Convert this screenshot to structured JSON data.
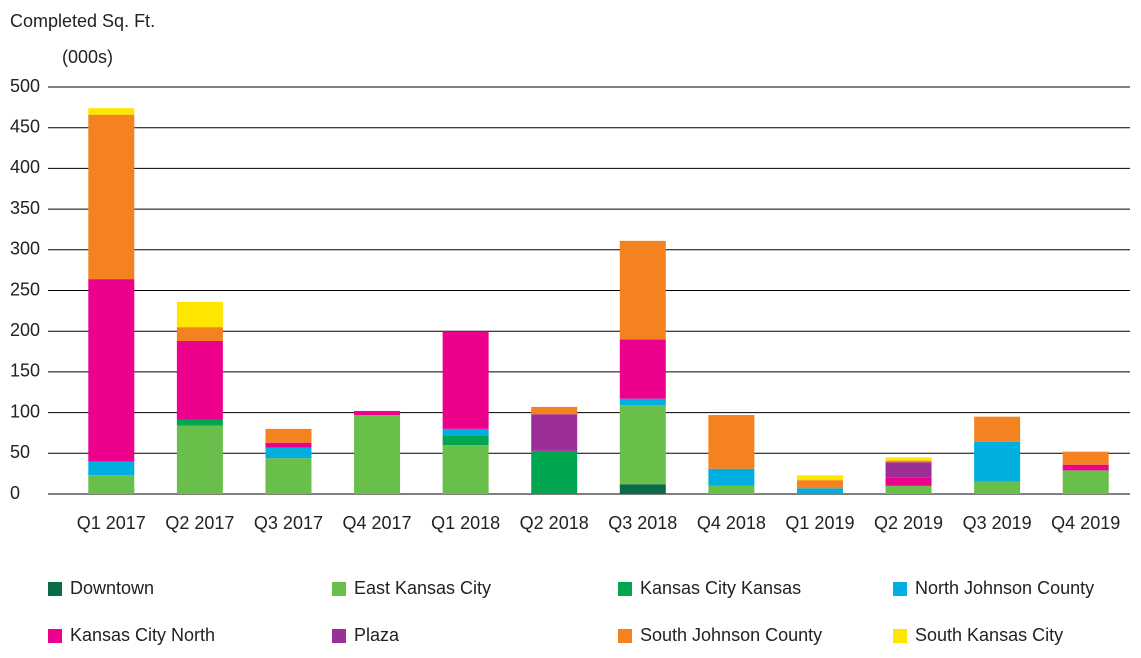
{
  "chart_data": {
    "type": "stacked_bar",
    "y_label": [
      "Completed Sq. Ft.",
      "(000s)"
    ],
    "categories": [
      "Q1 2017",
      "Q2 2017",
      "Q3 2017",
      "Q4 2017",
      "Q1 2018",
      "Q2 2018",
      "Q3 2018",
      "Q4 2018",
      "Q1 2019",
      "Q2 2019",
      "Q3 2019",
      "Q4 2019"
    ],
    "series": [
      {
        "name": "Downtown",
        "color": "#0b6b47",
        "values": [
          0,
          0,
          0,
          0,
          0,
          0,
          12,
          0,
          0,
          0,
          0,
          0
        ]
      },
      {
        "name": "East Kansas City",
        "color": "#6abf4b",
        "values": [
          23,
          84,
          44,
          97,
          60,
          0,
          97,
          10,
          0,
          10,
          15,
          29
        ]
      },
      {
        "name": "Kansas City Kansas",
        "color": "#00a650",
        "values": [
          0,
          7,
          0,
          0,
          12,
          53,
          0,
          0,
          0,
          0,
          0,
          0
        ]
      },
      {
        "name": "North Johnson County",
        "color": "#00aee0",
        "values": [
          17,
          0,
          13,
          0,
          8,
          0,
          8,
          21,
          7,
          0,
          49,
          0
        ]
      },
      {
        "name": "Kansas City North",
        "color": "#ec008c",
        "values": [
          224,
          97,
          6,
          5,
          120,
          0,
          73,
          0,
          0,
          10,
          0,
          7
        ]
      },
      {
        "name": "Plaza",
        "color": "#9b2f96",
        "values": [
          0,
          0,
          0,
          0,
          0,
          45,
          0,
          0,
          0,
          19,
          0,
          0
        ]
      },
      {
        "name": "South Johnson County",
        "color": "#f58220",
        "values": [
          202,
          17,
          17,
          0,
          0,
          9,
          121,
          66,
          10,
          2,
          31,
          16
        ]
      },
      {
        "name": "South Kansas City",
        "color": "#ffe600",
        "values": [
          8,
          31,
          0,
          0,
          0,
          0,
          0,
          0,
          6,
          4,
          0,
          0
        ]
      }
    ],
    "ylim": [
      0,
      500
    ],
    "yticks": [
      0,
      50,
      100,
      150,
      200,
      250,
      300,
      350,
      400,
      450,
      500
    ],
    "grid": true
  }
}
